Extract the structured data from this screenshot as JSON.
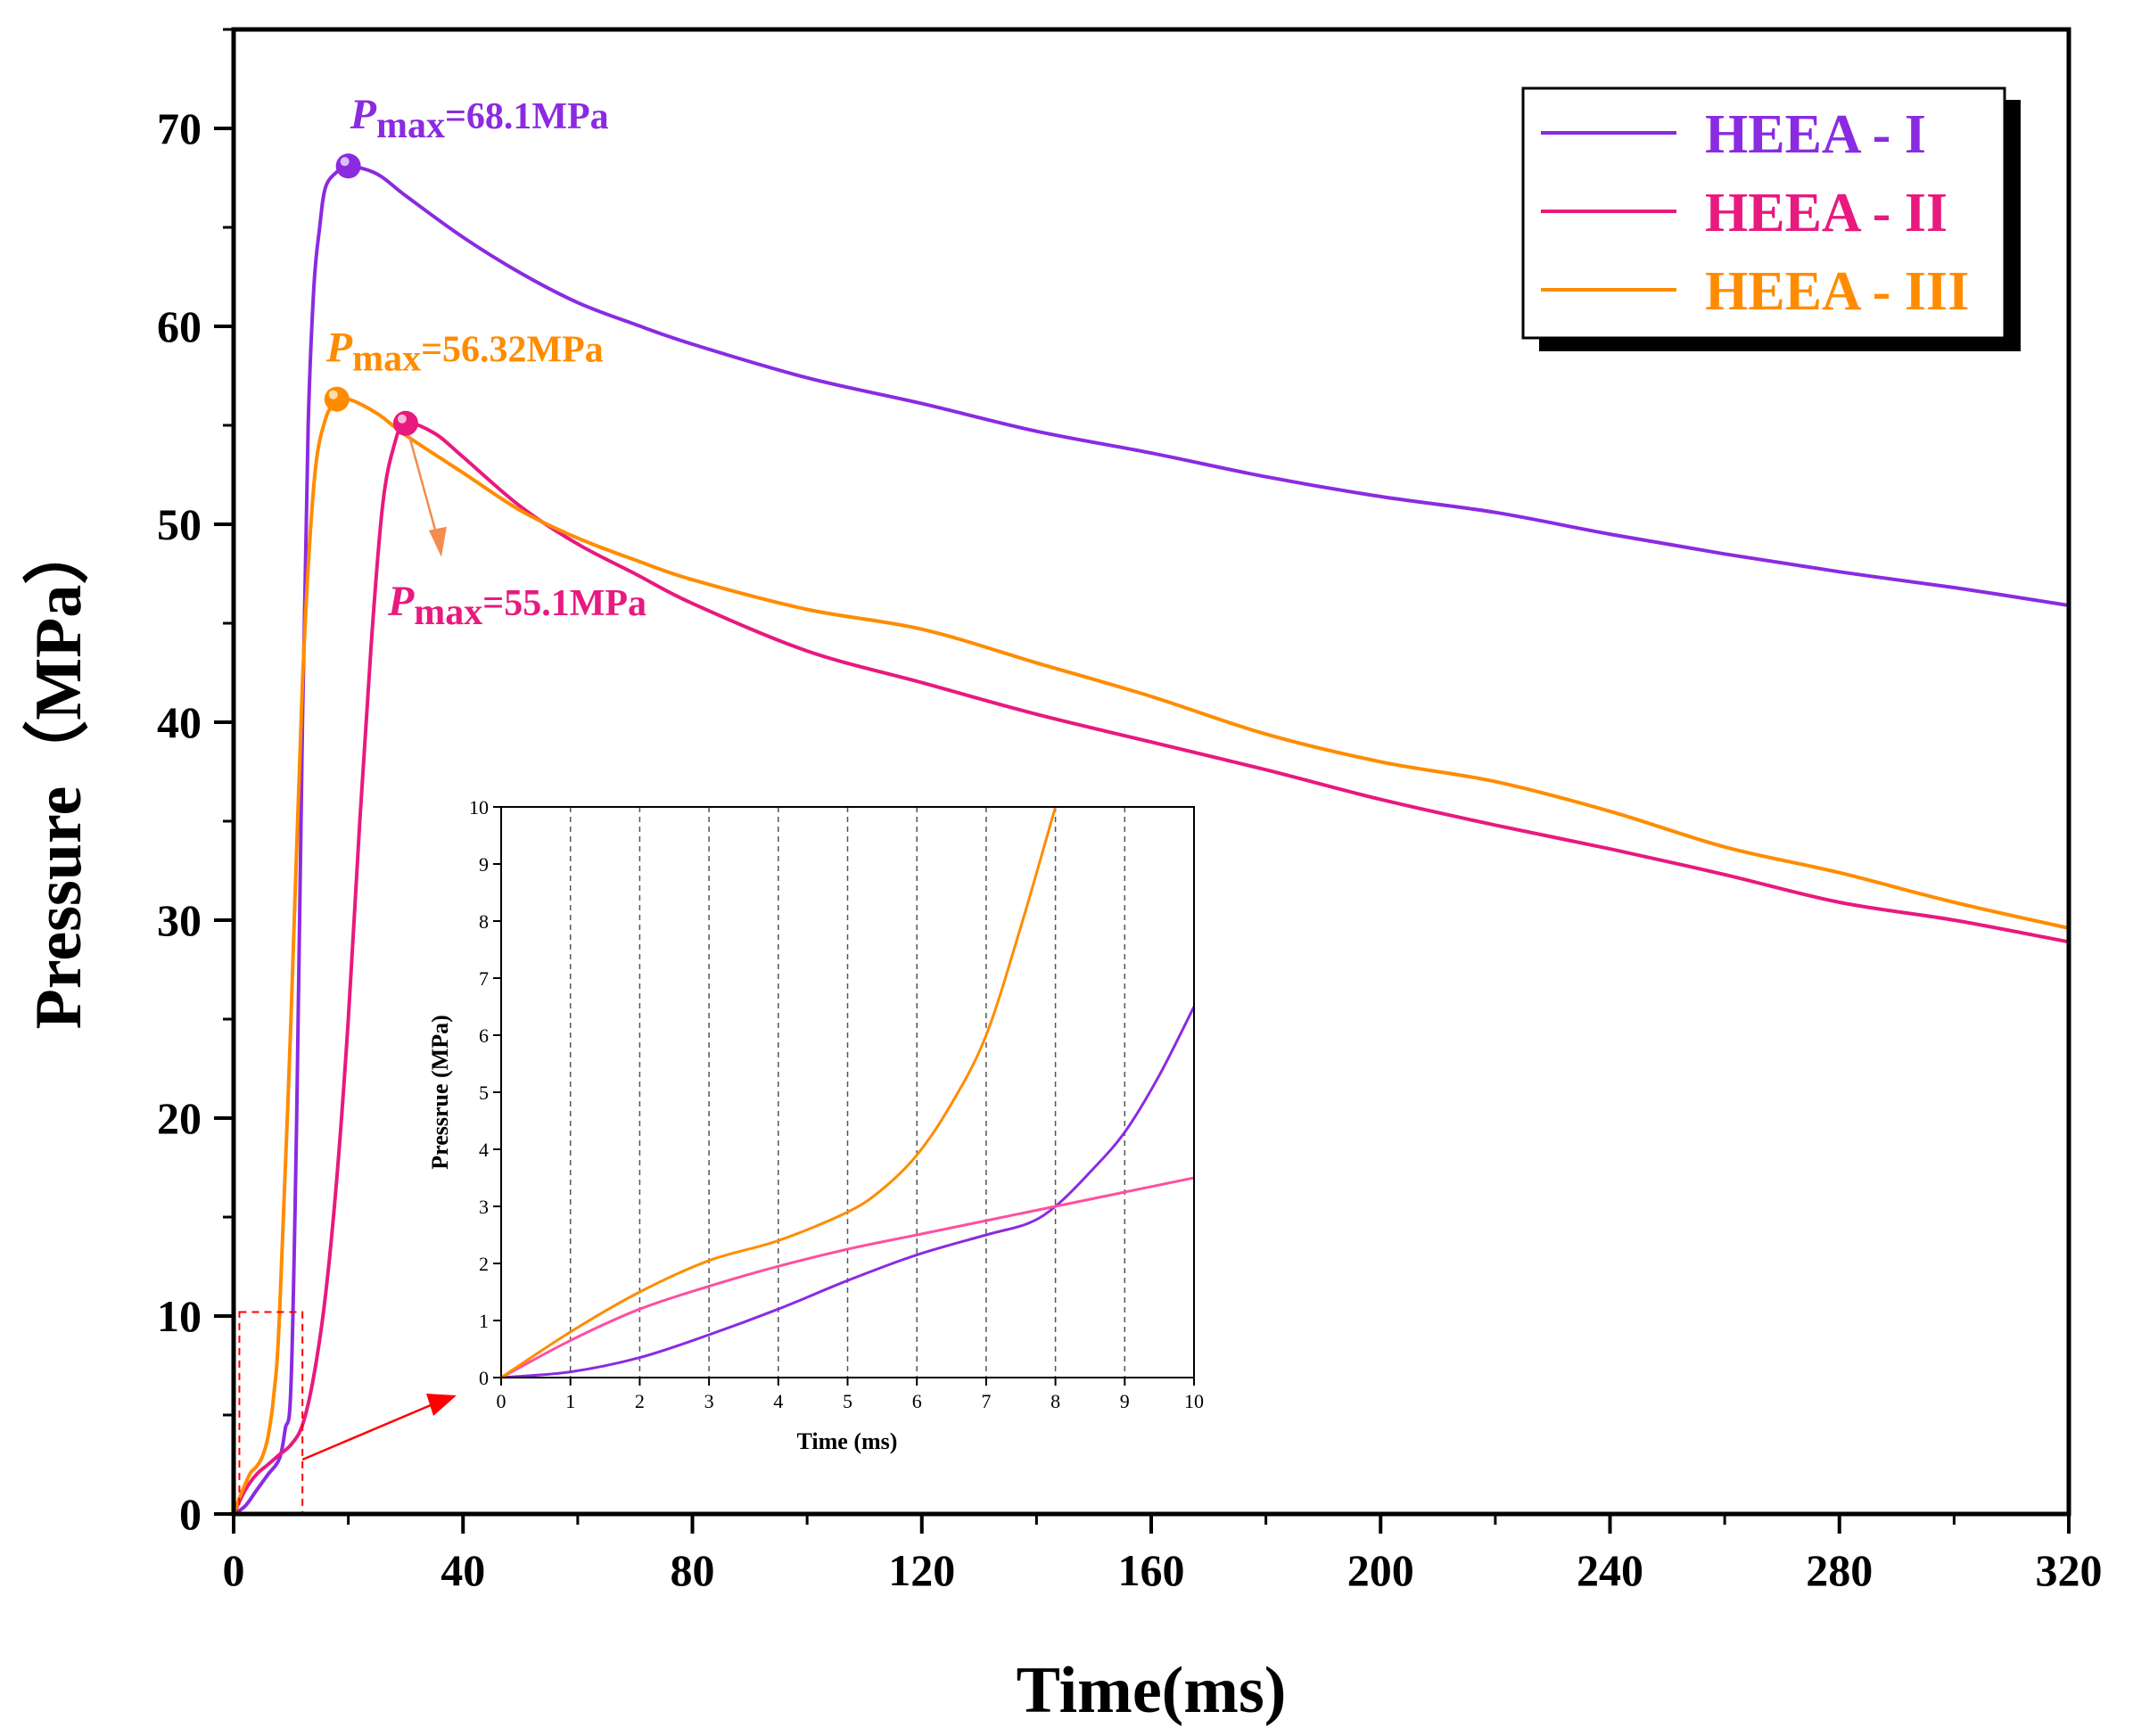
{
  "chart_data": [
    {
      "type": "line",
      "role": "main",
      "xlabel": "Time(ms)",
      "ylabel": "Pressure（MPa）",
      "xlim": [
        0,
        320
      ],
      "ylim": [
        0,
        75
      ],
      "xticks": [
        0,
        40,
        80,
        120,
        160,
        200,
        240,
        280,
        320
      ],
      "yticks": [
        0,
        10,
        20,
        30,
        40,
        50,
        60,
        70
      ],
      "grid": false,
      "legend_position": "top-right",
      "series": [
        {
          "name": "HEEA - I",
          "color": "#8a2be2",
          "points": [
            [
              0,
              0
            ],
            [
              2,
              0.4
            ],
            [
              4,
              1.2
            ],
            [
              6,
              2
            ],
            [
              8,
              2.8
            ],
            [
              9,
              4.3
            ],
            [
              10,
              6.5
            ],
            [
              11,
              20
            ],
            [
              12,
              40
            ],
            [
              13,
              55
            ],
            [
              14,
              62
            ],
            [
              15,
              65
            ],
            [
              16,
              67
            ],
            [
              18,
              67.8
            ],
            [
              20,
              68.1
            ],
            [
              25,
              67.7
            ],
            [
              30,
              66.6
            ],
            [
              40,
              64.5
            ],
            [
              50,
              62.7
            ],
            [
              60,
              61.2
            ],
            [
              70,
              60.1
            ],
            [
              80,
              59.1
            ],
            [
              100,
              57.4
            ],
            [
              120,
              56.1
            ],
            [
              140,
              54.7
            ],
            [
              160,
              53.6
            ],
            [
              180,
              52.4
            ],
            [
              200,
              51.4
            ],
            [
              220,
              50.6
            ],
            [
              240,
              49.5
            ],
            [
              260,
              48.5
            ],
            [
              280,
              47.6
            ],
            [
              300,
              46.8
            ],
            [
              320,
              45.9
            ]
          ]
        },
        {
          "name": "HEEA - II",
          "color": "#e8197f",
          "points": [
            [
              0,
              0
            ],
            [
              2,
              1.2
            ],
            [
              4,
              2
            ],
            [
              6,
              2.5
            ],
            [
              8,
              3
            ],
            [
              10,
              3.5
            ],
            [
              12,
              4.5
            ],
            [
              14,
              7
            ],
            [
              16,
              11
            ],
            [
              18,
              17
            ],
            [
              20,
              25
            ],
            [
              22,
              35
            ],
            [
              24,
              44
            ],
            [
              26,
              51
            ],
            [
              28,
              54
            ],
            [
              30,
              55.1
            ],
            [
              35,
              54.6
            ],
            [
              40,
              53.4
            ],
            [
              50,
              50.9
            ],
            [
              60,
              49
            ],
            [
              70,
              47.5
            ],
            [
              80,
              46
            ],
            [
              100,
              43.6
            ],
            [
              120,
              42
            ],
            [
              140,
              40.4
            ],
            [
              160,
              39
            ],
            [
              180,
              37.6
            ],
            [
              200,
              36.1
            ],
            [
              220,
              34.8
            ],
            [
              240,
              33.6
            ],
            [
              260,
              32.3
            ],
            [
              280,
              30.9
            ],
            [
              300,
              30
            ],
            [
              320,
              28.9
            ]
          ]
        },
        {
          "name": "HEEA - III",
          "color": "#ff8c00",
          "points": [
            [
              0,
              0
            ],
            [
              1,
              0.8
            ],
            [
              2,
              1.5
            ],
            [
              3,
              2.1
            ],
            [
              4,
              2.4
            ],
            [
              5,
              2.9
            ],
            [
              6,
              3.9
            ],
            [
              7,
              6
            ],
            [
              8,
              10
            ],
            [
              10,
              25
            ],
            [
              12,
              42
            ],
            [
              14,
              52
            ],
            [
              16,
              55.3
            ],
            [
              18,
              56.1
            ],
            [
              20,
              56.32
            ],
            [
              25,
              55.6
            ],
            [
              30,
              54.5
            ],
            [
              40,
              52.6
            ],
            [
              50,
              50.7
            ],
            [
              60,
              49.3
            ],
            [
              70,
              48.2
            ],
            [
              80,
              47.2
            ],
            [
              100,
              45.7
            ],
            [
              120,
              44.7
            ],
            [
              140,
              43
            ],
            [
              160,
              41.3
            ],
            [
              180,
              39.4
            ],
            [
              200,
              38
            ],
            [
              220,
              37
            ],
            [
              240,
              35.5
            ],
            [
              260,
              33.7
            ],
            [
              280,
              32.4
            ],
            [
              300,
              30.9
            ],
            [
              320,
              29.6
            ]
          ]
        }
      ],
      "annotations": [
        {
          "series": "HEEA - I",
          "x": 20,
          "y": 68.1,
          "label_p": "P",
          "label_sub": "max",
          "label_rest": "=68.1MPa",
          "color": "#8a2be2"
        },
        {
          "series": "HEEA - III",
          "x": 18,
          "y": 56.32,
          "label_p": "P",
          "label_sub": "max",
          "label_rest": "=56.32MPa",
          "color": "#ff8c00"
        },
        {
          "series": "HEEA - II",
          "x": 30,
          "y": 55.1,
          "label_p": "P",
          "label_sub": "max",
          "label_rest": "=55.1MPa",
          "color": "#e8197f"
        }
      ],
      "zoom_box": {
        "x_range": [
          1,
          12
        ],
        "y_range": [
          0,
          10.2
        ],
        "color": "#ff0000"
      }
    },
    {
      "type": "line",
      "role": "inset",
      "xlabel": "Time (ms)",
      "ylabel": "Pressrue (MPa)",
      "xlim": [
        0,
        10
      ],
      "ylim": [
        0,
        10
      ],
      "xticks": [
        0,
        1,
        2,
        3,
        4,
        5,
        6,
        7,
        8,
        9,
        10
      ],
      "yticks": [
        0,
        1,
        2,
        3,
        4,
        5,
        6,
        7,
        8,
        9,
        10
      ],
      "grid": "vertical dashed",
      "series": [
        {
          "name": "HEEA - I",
          "color": "#8a2be2",
          "points": [
            [
              0,
              0
            ],
            [
              1,
              0.1
            ],
            [
              2,
              0.35
            ],
            [
              3,
              0.75
            ],
            [
              4,
              1.2
            ],
            [
              5,
              1.7
            ],
            [
              6,
              2.15
            ],
            [
              7,
              2.5
            ],
            [
              7.6,
              2.7
            ],
            [
              8,
              3
            ],
            [
              8.5,
              3.6
            ],
            [
              9,
              4.3
            ],
            [
              9.5,
              5.3
            ],
            [
              10,
              6.5
            ]
          ]
        },
        {
          "name": "HEEA - II",
          "color": "#ff4fa0",
          "points": [
            [
              0,
              0
            ],
            [
              1,
              0.65
            ],
            [
              2,
              1.2
            ],
            [
              3,
              1.6
            ],
            [
              4,
              1.95
            ],
            [
              5,
              2.25
            ],
            [
              6,
              2.5
            ],
            [
              7,
              2.75
            ],
            [
              8,
              3
            ],
            [
              9,
              3.25
            ],
            [
              10,
              3.5
            ]
          ]
        },
        {
          "name": "HEEA - III",
          "color": "#ff8c00",
          "points": [
            [
              0,
              0
            ],
            [
              1,
              0.8
            ],
            [
              2,
              1.5
            ],
            [
              3,
              2.05
            ],
            [
              4,
              2.4
            ],
            [
              5,
              2.9
            ],
            [
              5.5,
              3.3
            ],
            [
              6,
              3.9
            ],
            [
              6.5,
              4.8
            ],
            [
              7,
              6
            ],
            [
              7.5,
              7.9
            ],
            [
              8,
              10
            ]
          ]
        }
      ]
    }
  ]
}
